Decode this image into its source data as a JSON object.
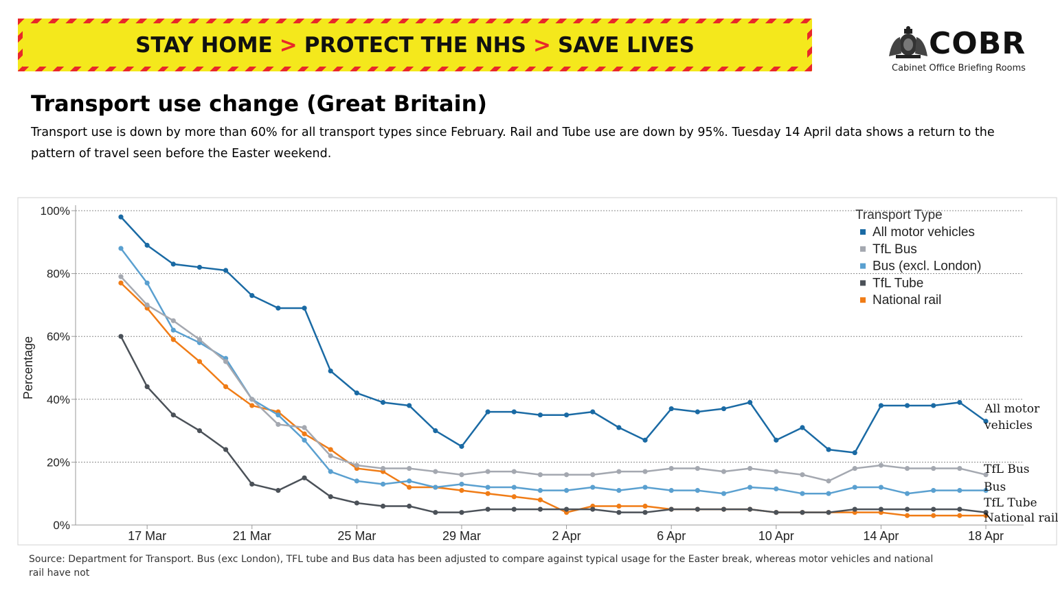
{
  "banner": {
    "part1": "STAY HOME",
    "part2": "PROTECT THE NHS",
    "part3": "SAVE LIVES",
    "separator": ">"
  },
  "logo": {
    "wordmark": "COBR",
    "subtitle": "Cabinet Office Briefing Rooms",
    "icon": "royal-crest-icon"
  },
  "heading": {
    "title": "Transport use change (Great Britain)",
    "subtitle": "Transport use is down by more than 60% for all transport types since February. Rail and Tube use are down by 95%. Tuesday 14 April data shows a return to the pattern of travel seen before the Easter weekend."
  },
  "source": "Source: Department for Transport. Bus (exc London), TFL tube and Bus data has been adjusted to compare against typical usage for the Easter break, whereas motor vehicles and national rail have not",
  "chart_data": {
    "type": "line",
    "ylabel": "Percentage",
    "xlabel": "",
    "ylim": [
      0,
      100
    ],
    "yticks": [
      "0%",
      "20%",
      "40%",
      "60%",
      "80%",
      "100%"
    ],
    "ytick_values": [
      0,
      20,
      40,
      60,
      80,
      100
    ],
    "xticks": [
      "17 Mar",
      "21 Mar",
      "25 Mar",
      "29 Mar",
      "2 Apr",
      "6 Apr",
      "10 Apr",
      "14 Apr",
      "18 Apr"
    ],
    "xtick_dates": [
      "2020-03-17",
      "2020-03-21",
      "2020-03-25",
      "2020-03-29",
      "2020-04-02",
      "2020-04-06",
      "2020-04-10",
      "2020-04-14",
      "2020-04-18"
    ],
    "x": [
      "2020-03-16",
      "2020-03-17",
      "2020-03-18",
      "2020-03-19",
      "2020-03-20",
      "2020-03-21",
      "2020-03-22",
      "2020-03-23",
      "2020-03-24",
      "2020-03-25",
      "2020-03-26",
      "2020-03-27",
      "2020-03-28",
      "2020-03-29",
      "2020-03-30",
      "2020-03-31",
      "2020-04-01",
      "2020-04-02",
      "2020-04-03",
      "2020-04-04",
      "2020-04-05",
      "2020-04-06",
      "2020-04-07",
      "2020-04-08",
      "2020-04-09",
      "2020-04-10",
      "2020-04-11",
      "2020-04-12",
      "2020-04-13",
      "2020-04-14",
      "2020-04-15",
      "2020-04-16",
      "2020-04-17",
      "2020-04-18"
    ],
    "grid": "horizontal dashed",
    "legend": {
      "title": "Transport Type",
      "placement": "top-right"
    },
    "series": [
      {
        "name": "All motor vehicles",
        "end_label": "All motor vehicles",
        "color": "#1a6aa4",
        "values": [
          98,
          89,
          83,
          82,
          81,
          73,
          69,
          69,
          49,
          42,
          39,
          38,
          30,
          25,
          36,
          36,
          35,
          35,
          36,
          31,
          27,
          37,
          36,
          37,
          39,
          27,
          31,
          24,
          23,
          38,
          38,
          38,
          39,
          33
        ]
      },
      {
        "name": "TfL Bus",
        "end_label": "TfL Bus",
        "color": "#a4a8b0",
        "values": [
          79,
          70,
          65,
          59,
          52,
          40,
          32,
          31,
          22,
          19,
          18,
          18,
          17,
          16,
          17,
          17,
          16,
          16,
          16,
          17,
          17,
          18,
          18,
          17,
          18,
          17,
          16,
          14,
          18,
          19,
          18,
          18,
          18,
          16
        ]
      },
      {
        "name": "Bus (excl. London)",
        "end_label": "Bus",
        "color": "#5aa0d0",
        "values": [
          88,
          77,
          62,
          58,
          53,
          40,
          35,
          27,
          17,
          14,
          13,
          14,
          12,
          13,
          12,
          12,
          11,
          11,
          12,
          11,
          12,
          11,
          11,
          10,
          12,
          11.5,
          10,
          10,
          12,
          12,
          10,
          11,
          11,
          11
        ]
      },
      {
        "name": "TfL Tube",
        "end_label": "TfL Tube",
        "color": "#4b5158",
        "values": [
          60,
          44,
          35,
          30,
          24,
          13,
          11,
          15,
          9,
          7,
          6,
          6,
          4,
          4,
          5,
          5,
          5,
          5,
          5,
          4,
          4,
          5,
          5,
          5,
          5,
          4,
          4,
          4,
          5,
          5,
          5,
          5,
          5,
          4
        ]
      },
      {
        "name": "National rail",
        "end_label": "National rail",
        "color": "#f07c16",
        "values": [
          77,
          69,
          59,
          52,
          44,
          38,
          36,
          29,
          24,
          18,
          17,
          12,
          12,
          11,
          10,
          9,
          8,
          4,
          6,
          6,
          6,
          5,
          5,
          5,
          5,
          4,
          4,
          4,
          4,
          4,
          3,
          3,
          3,
          3
        ]
      }
    ]
  }
}
